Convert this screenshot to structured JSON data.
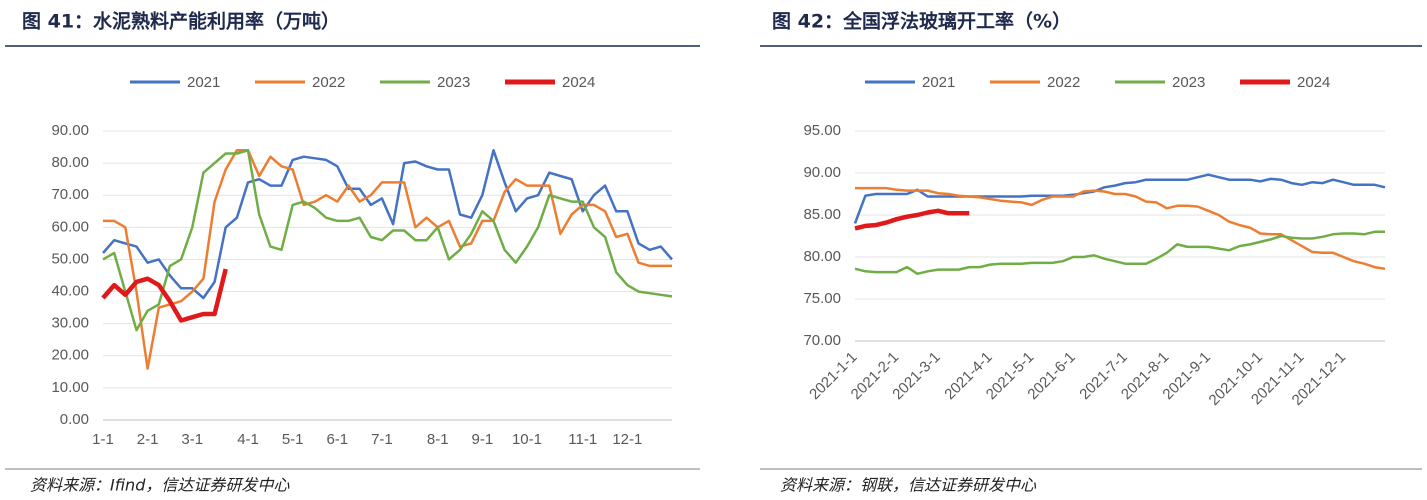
{
  "chart_data": [
    {
      "type": "line",
      "title": "图 41：水泥熟料产能利用率（万吨）",
      "source": "资料来源：Ifind，信达证券研发中心",
      "categories": [
        "1-1",
        null,
        null,
        null,
        "2-1",
        null,
        null,
        null,
        "3-1",
        null,
        null,
        null,
        null,
        "4-1",
        null,
        null,
        null,
        "5-1",
        null,
        null,
        null,
        "6-1",
        null,
        null,
        null,
        "7-1",
        null,
        null,
        null,
        null,
        "8-1",
        null,
        null,
        null,
        "9-1",
        null,
        null,
        null,
        "10-1",
        null,
        null,
        null,
        null,
        "11-1",
        null,
        null,
        null,
        "12-1",
        null,
        null,
        null,
        null
      ],
      "series": [
        {
          "name": "2021",
          "color": "#4472c4",
          "values": [
            52,
            56,
            55,
            54,
            49,
            50,
            45,
            41,
            41,
            38,
            43,
            60,
            63,
            74,
            75,
            73,
            73,
            81,
            82,
            81.5,
            81,
            79,
            72,
            72,
            67,
            69,
            61,
            80,
            80.5,
            79,
            78,
            78,
            64,
            63,
            70,
            84,
            74,
            65,
            69,
            70,
            77,
            76,
            75,
            65,
            70,
            73,
            65,
            65,
            55,
            53,
            54,
            50
          ]
        },
        {
          "name": "2022",
          "color": "#ed7d31",
          "values": [
            62,
            62,
            60,
            40,
            16,
            35,
            36,
            37,
            40,
            44,
            68,
            78,
            84,
            84,
            76,
            82,
            79,
            78,
            67,
            68,
            70,
            68,
            73,
            68,
            70,
            74,
            74,
            74,
            60,
            63,
            60,
            62,
            54,
            55,
            62,
            62,
            71,
            75,
            73,
            73,
            73,
            58,
            64,
            67,
            67,
            65,
            57,
            58,
            49,
            48,
            48,
            48
          ]
        },
        {
          "name": "2023",
          "color": "#70ad47",
          "values": [
            50,
            52,
            40,
            28,
            34,
            36,
            48,
            50,
            60,
            77,
            80,
            83,
            83,
            84,
            64,
            54,
            53,
            67,
            68,
            66,
            63,
            62,
            62,
            63,
            57,
            56,
            59,
            59,
            56,
            56,
            60,
            50,
            53,
            58,
            65,
            62,
            53,
            49,
            54,
            60,
            70,
            69,
            68,
            68,
            60,
            57,
            46,
            42,
            40,
            39.5,
            39,
            38.5
          ]
        },
        {
          "name": "2024",
          "color": "#e0191b",
          "values": [
            38,
            42,
            39,
            43,
            44,
            42,
            37,
            31,
            32,
            33,
            33,
            47,
            null,
            null,
            null,
            null,
            null,
            null,
            null,
            null,
            null,
            null,
            null,
            null,
            null,
            null,
            null,
            null,
            null,
            null,
            null,
            null,
            null,
            null,
            null,
            null,
            null,
            null,
            null,
            null,
            null,
            null,
            null,
            null,
            null,
            null,
            null,
            null,
            null,
            null,
            null,
            null
          ]
        }
      ],
      "ylim": [
        0,
        90
      ],
      "yticks": [
        {
          "value": 0,
          "label": "0.00"
        },
        {
          "value": 10,
          "label": "10.00"
        },
        {
          "value": 20,
          "label": "20.00"
        },
        {
          "value": 30,
          "label": "30.00"
        },
        {
          "value": 40,
          "label": "40.00"
        },
        {
          "value": 50,
          "label": "50.00"
        },
        {
          "value": 60,
          "label": "60.00"
        },
        {
          "value": 70,
          "label": "70.00"
        },
        {
          "value": 80,
          "label": "80.00"
        },
        {
          "value": 90,
          "label": "90.00"
        }
      ],
      "grid": true,
      "legend": "top"
    },
    {
      "type": "line",
      "title": "图 42：全国浮法玻璃开工率（%）",
      "source": "资料来源：钢联，信达证券研发中心",
      "categories": [
        "2021-1-1",
        null,
        null,
        null,
        "2021-2-1",
        null,
        null,
        null,
        "2021-3-1",
        null,
        null,
        null,
        null,
        "2021-4-1",
        null,
        null,
        null,
        "2021-5-1",
        null,
        null,
        null,
        "2021-6-1",
        null,
        null,
        null,
        null,
        "2021-7-1",
        null,
        null,
        null,
        "2021-8-1",
        null,
        null,
        null,
        "2021-9-1",
        null,
        null,
        null,
        null,
        "2021-10-1",
        null,
        null,
        null,
        "2021-11-1",
        null,
        null,
        null,
        "2021-12-1",
        null,
        null,
        null,
        null
      ],
      "series": [
        {
          "name": "2021",
          "color": "#4472c4",
          "values": [
            84,
            87.3,
            87.5,
            87.5,
            87.5,
            87.5,
            88,
            87.2,
            87.2,
            87.2,
            87.2,
            87.2,
            87.2,
            87.2,
            87.2,
            87.2,
            87.2,
            87.3,
            87.3,
            87.3,
            87.3,
            87.4,
            87.6,
            87.8,
            88.3,
            88.5,
            88.8,
            88.9,
            89.2,
            89.2,
            89.2,
            89.2,
            89.2,
            89.5,
            89.8,
            89.5,
            89.2,
            89.2,
            89.2,
            89.0,
            89.3,
            89.2,
            88.8,
            88.6,
            88.9,
            88.8,
            89.2,
            88.9,
            88.6,
            88.6,
            88.6,
            88.3
          ]
        },
        {
          "name": "2022",
          "color": "#ed7d31",
          "values": [
            88.2,
            88.2,
            88.2,
            88.2,
            88,
            87.9,
            87.9,
            87.9,
            87.6,
            87.5,
            87.3,
            87.2,
            87.1,
            86.9,
            86.7,
            86.6,
            86.5,
            86.2,
            86.8,
            87.2,
            87.2,
            87.2,
            87.8,
            87.9,
            87.8,
            87.5,
            87.5,
            87.2,
            86.6,
            86.5,
            85.8,
            86.1,
            86.1,
            86,
            85.5,
            85.0,
            84.2,
            83.8,
            83.5,
            82.8,
            82.7,
            82.7,
            82.0,
            81.3,
            80.6,
            80.5,
            80.5,
            80.0,
            79.5,
            79.2,
            78.8,
            78.6
          ]
        },
        {
          "name": "2023",
          "color": "#70ad47",
          "values": [
            78.6,
            78.3,
            78.2,
            78.2,
            78.2,
            78.8,
            78,
            78.3,
            78.5,
            78.5,
            78.5,
            78.8,
            78.8,
            79.1,
            79.2,
            79.2,
            79.2,
            79.3,
            79.3,
            79.3,
            79.5,
            80,
            80,
            80.2,
            79.8,
            79.5,
            79.2,
            79.2,
            79.2,
            79.8,
            80.5,
            81.5,
            81.2,
            81.2,
            81.2,
            81.0,
            80.8,
            81.3,
            81.5,
            81.8,
            82.1,
            82.5,
            82.3,
            82.2,
            82.2,
            82.4,
            82.7,
            82.8,
            82.8,
            82.7,
            83.0,
            83.0
          ]
        },
        {
          "name": "2024",
          "color": "#e0191b",
          "values": [
            83.4,
            83.7,
            83.8,
            84.1,
            84.5,
            84.8,
            85.0,
            85.3,
            85.5,
            85.2,
            85.2,
            85.2,
            null,
            null,
            null,
            null,
            null,
            null,
            null,
            null,
            null,
            null,
            null,
            null,
            null,
            null,
            null,
            null,
            null,
            null,
            null,
            null,
            null,
            null,
            null,
            null,
            null,
            null,
            null,
            null,
            null,
            null,
            null,
            null,
            null,
            null,
            null,
            null,
            null,
            null,
            null,
            null
          ]
        }
      ],
      "ylim": [
        70,
        95
      ],
      "yticks": [
        {
          "value": 70,
          "label": "70.00"
        },
        {
          "value": 75,
          "label": "75.00"
        },
        {
          "value": 80,
          "label": "80.00"
        },
        {
          "value": 85,
          "label": "85.00"
        },
        {
          "value": 90,
          "label": "90.00"
        },
        {
          "value": 95,
          "label": "95.00"
        }
      ],
      "grid": true,
      "legend": "top"
    }
  ]
}
